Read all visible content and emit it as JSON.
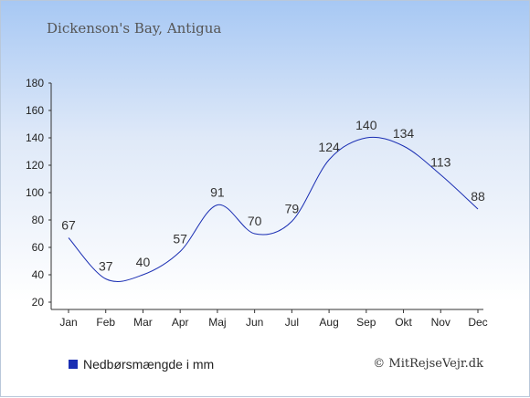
{
  "title": "Dickenson's Bay, Antigua",
  "legend": {
    "label": "Nedbørsmængde i mm"
  },
  "copyright": "© MitRejseVejr.dk",
  "colors": {
    "series": "#1a2eb3",
    "axis": "#333333"
  },
  "chart_data": {
    "type": "line",
    "categories": [
      "Jan",
      "Feb",
      "Mar",
      "Apr",
      "Maj",
      "Jun",
      "Jul",
      "Aug",
      "Sep",
      "Okt",
      "Nov",
      "Dec"
    ],
    "series": [
      {
        "name": "Nedbørsmængde i mm",
        "values": [
          67,
          37,
          40,
          57,
          91,
          70,
          79,
          124,
          140,
          134,
          113,
          88
        ]
      }
    ],
    "ylim": [
      20,
      180
    ],
    "yticks": [
      20,
      40,
      60,
      80,
      100,
      120,
      140,
      160,
      180
    ],
    "grid": false,
    "legend": "bottom-left"
  }
}
